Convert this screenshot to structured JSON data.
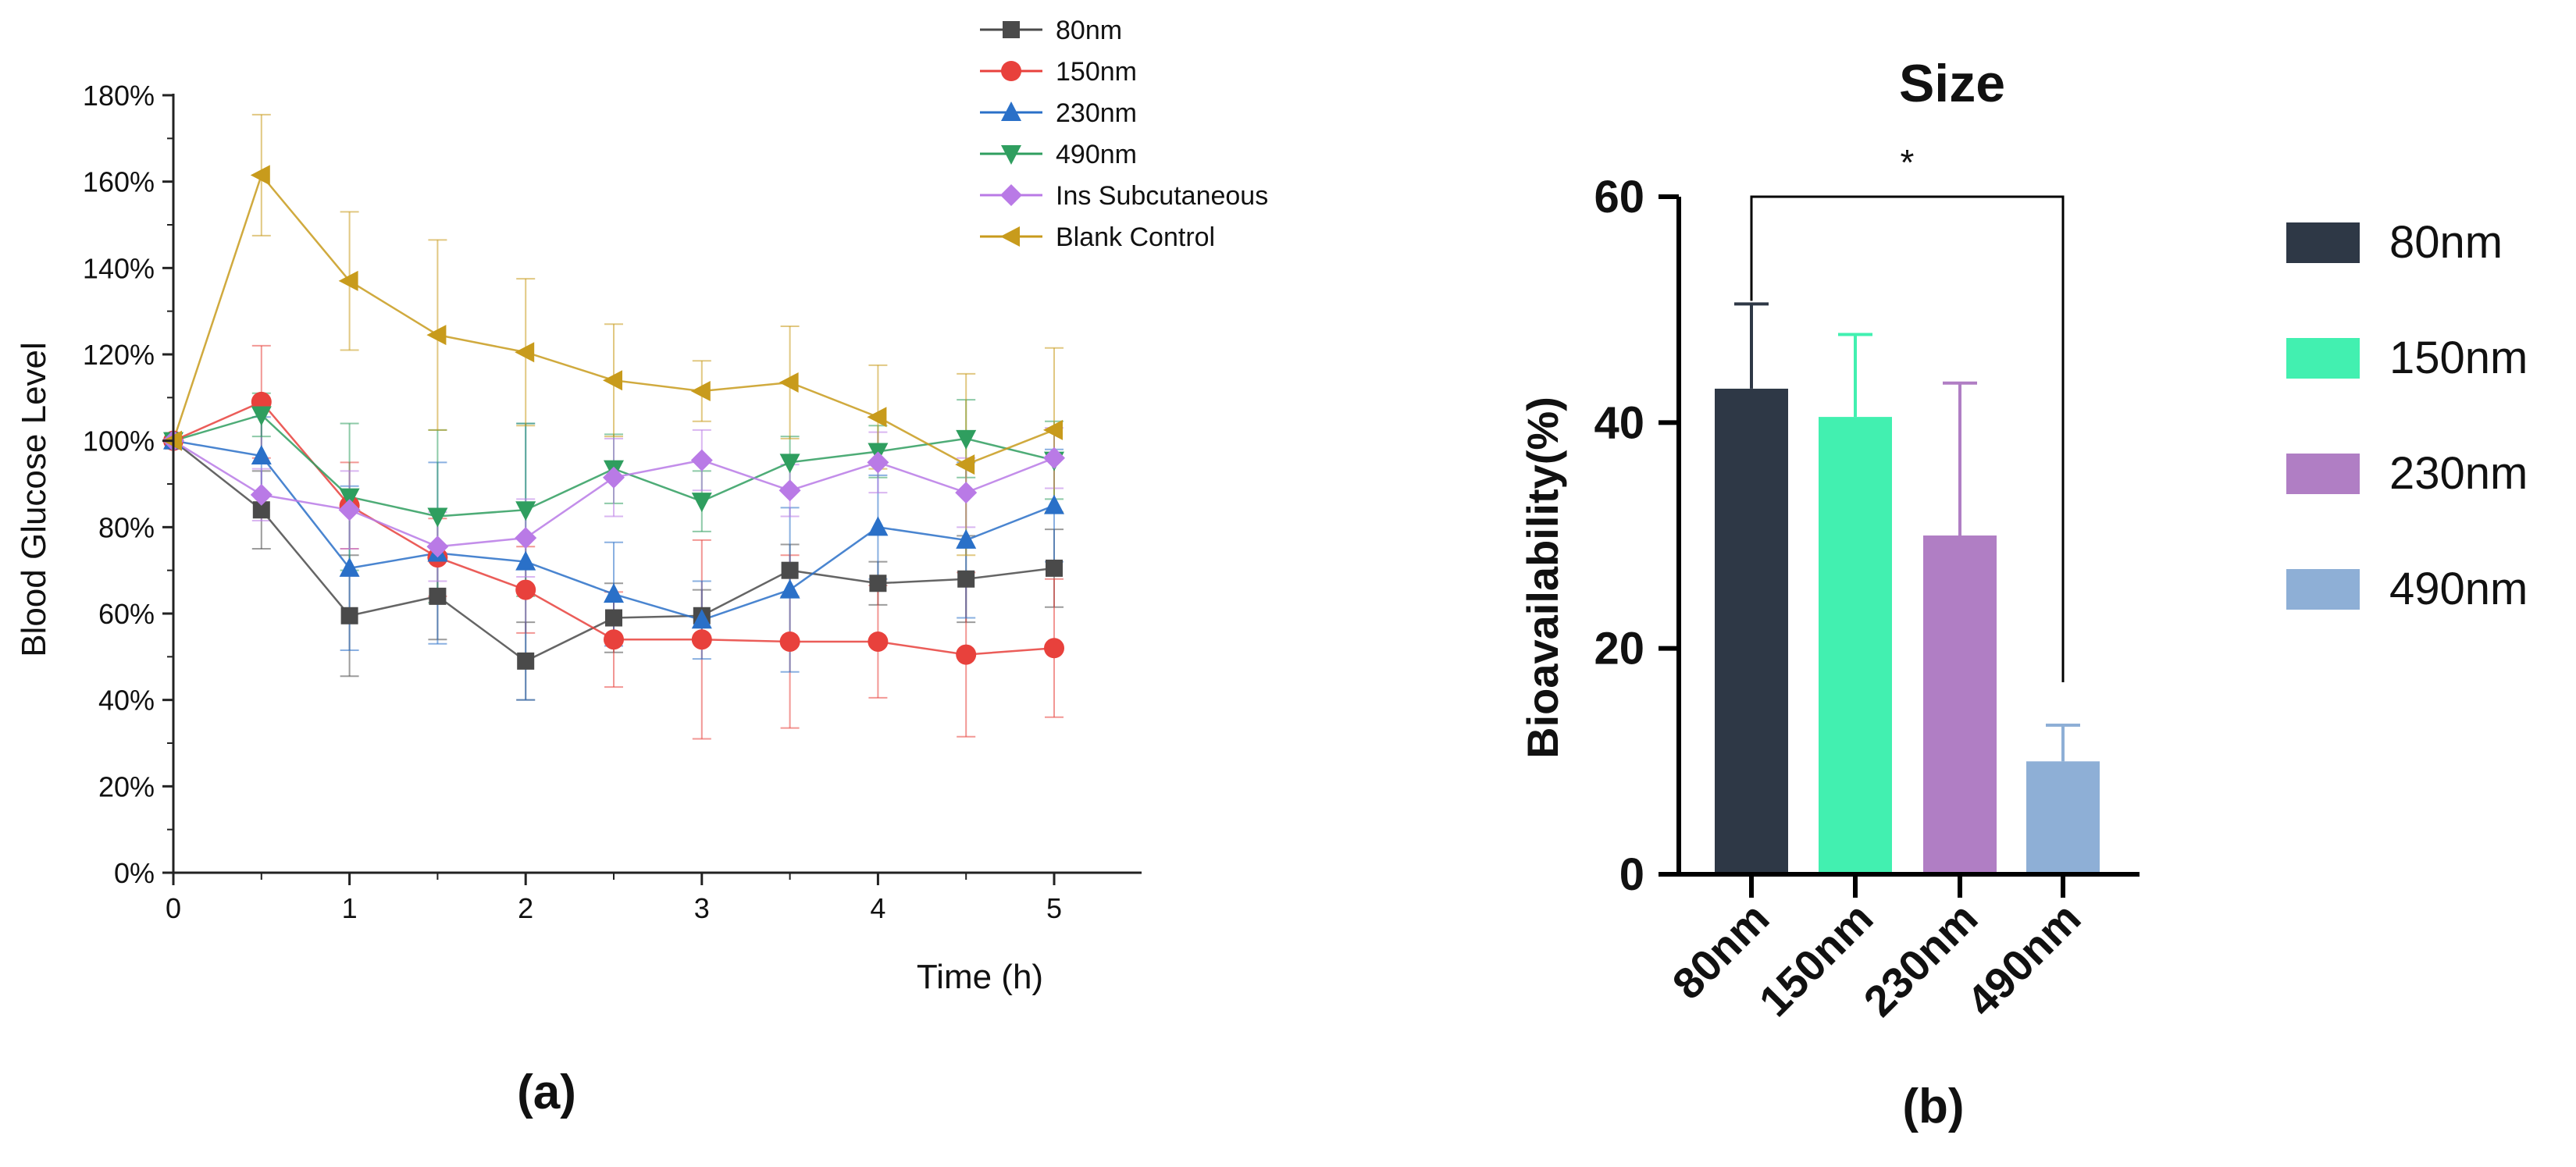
{
  "chart_data": [
    {
      "panel_label": "(a)",
      "type": "line",
      "title": "",
      "xlabel": "Time (h)",
      "ylabel": "Blood Glucose Level",
      "xlim": [
        0,
        5.5
      ],
      "ylim": [
        0,
        180
      ],
      "x_ticks": [
        "0",
        "1",
        "2",
        "3",
        "4",
        "5"
      ],
      "y_ticks": [
        "0%",
        "20%",
        "40%",
        "60%",
        "80%",
        "100%",
        "120%",
        "140%",
        "160%",
        "180%"
      ],
      "grid": false,
      "legend_position": "top-right",
      "x": [
        0,
        0.5,
        1,
        1.5,
        2,
        2.5,
        3,
        3.5,
        4,
        4.5,
        5
      ],
      "series": [
        {
          "name": "80nm",
          "color": "#4a4a4a",
          "marker": "square",
          "values": [
            100,
            84,
            59.5,
            64,
            49,
            59,
            59.5,
            70,
            67,
            68,
            70.5
          ],
          "errors": [
            0,
            9,
            14,
            10,
            9,
            8,
            6,
            6,
            5,
            10,
            9
          ]
        },
        {
          "name": "150nm",
          "color": "#e8413c",
          "marker": "circle",
          "values": [
            100,
            109,
            85,
            73,
            65.5,
            54,
            54,
            53.5,
            53.5,
            50.5,
            52
          ],
          "errors": [
            0,
            13,
            10,
            9,
            10,
            11,
            23,
            20,
            13,
            19,
            16
          ]
        },
        {
          "name": "230nm",
          "color": "#2a70c8",
          "marker": "triangle-up",
          "values": [
            100,
            96.5,
            70.5,
            74,
            72,
            64.5,
            58.5,
            65.5,
            80,
            77,
            85
          ],
          "errors": [
            0,
            9,
            19,
            21,
            32,
            12,
            9,
            19,
            12,
            18,
            13
          ]
        },
        {
          "name": "490nm",
          "color": "#2f9e5f",
          "marker": "triangle-down",
          "values": [
            100,
            106,
            87,
            82.5,
            84,
            93.5,
            86,
            95,
            97.5,
            100.5,
            95.5
          ],
          "errors": [
            0,
            5,
            17,
            20,
            20,
            8,
            7,
            6,
            6,
            9,
            9
          ]
        },
        {
          "name": "Ins Subcutaneous",
          "color": "#b97ae6",
          "marker": "diamond",
          "values": [
            100,
            87.5,
            84,
            75.5,
            77.5,
            91.5,
            95.5,
            88.5,
            95,
            88,
            96
          ],
          "errors": [
            0,
            6,
            9,
            8,
            9,
            9,
            7,
            6,
            7,
            8,
            7
          ]
        },
        {
          "name": "Blank Control",
          "color": "#c89b1c",
          "marker": "triangle-left",
          "values": [
            100,
            161.5,
            137,
            124.5,
            120.5,
            114,
            111.5,
            113.5,
            105.5,
            94.5,
            102.5
          ],
          "errors": [
            0,
            14,
            16,
            22,
            17,
            13,
            7,
            13,
            12,
            21,
            19
          ]
        }
      ]
    },
    {
      "panel_label": "(b)",
      "type": "bar",
      "title": "Size",
      "xlabel": "",
      "ylabel": "Bioavailability(%)",
      "ylim": [
        0,
        60
      ],
      "y_ticks": [
        "0",
        "20",
        "40",
        "60"
      ],
      "categories": [
        "80nm",
        "150nm",
        "230nm",
        "490nm"
      ],
      "values": [
        43,
        40.5,
        30,
        10
      ],
      "errors": [
        7.5,
        7.3,
        13.5,
        3.2
      ],
      "colors": [
        "#2e3846",
        "#42f0b0",
        "#b07ec4",
        "#8eafd6"
      ],
      "significance": {
        "from": "80nm",
        "to": "490nm",
        "label": "*"
      },
      "legend_position": "right",
      "legend": [
        "80nm",
        "150nm",
        "230nm",
        "490nm"
      ]
    }
  ]
}
